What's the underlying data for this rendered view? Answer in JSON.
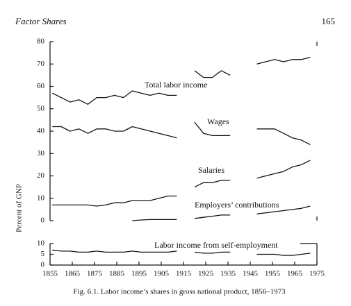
{
  "header": {
    "title": "Factor Shares",
    "page_number": "165"
  },
  "chart_data": {
    "type": "line",
    "caption": "Fig. 6.1. Labor income’s shares in gross national product, 1856–1973",
    "y_label": "Percent of GNP",
    "x": [
      1856,
      1860,
      1864,
      1868,
      1872,
      1876,
      1880,
      1884,
      1888,
      1892,
      1896,
      1900,
      1904,
      1908,
      1912,
      1916,
      1920,
      1924,
      1928,
      1932,
      1936,
      1940,
      1944,
      1948,
      1952,
      1956,
      1960,
      1964,
      1968,
      1972
    ],
    "xlim": [
      1855,
      1975
    ],
    "xticks": [
      1855,
      1865,
      1875,
      1885,
      1895,
      1905,
      1915,
      1925,
      1935,
      1945,
      1955,
      1965,
      1975
    ],
    "ylim": [
      0,
      80
    ],
    "yticks": [
      0,
      10,
      20,
      30,
      40,
      50,
      60,
      70,
      80
    ],
    "y2lim": [
      0,
      10
    ],
    "y2ticks": [
      0,
      5,
      10
    ],
    "series": [
      {
        "name": "Total labor income",
        "color": "#111111",
        "values": [
          57,
          55,
          53,
          54,
          52,
          55,
          55,
          56,
          55,
          58,
          57,
          56,
          57,
          56,
          56,
          null,
          67,
          64,
          64,
          67,
          65,
          null,
          null,
          70,
          71,
          72,
          71,
          72,
          72,
          73
        ]
      },
      {
        "name": "Wages",
        "color": "#111111",
        "values": [
          42,
          42,
          40,
          41,
          39,
          41,
          41,
          40,
          40,
          42,
          41,
          40,
          39,
          38,
          37,
          null,
          44,
          39,
          38,
          38,
          38,
          null,
          null,
          41,
          41,
          41,
          39,
          37,
          36,
          34
        ]
      },
      {
        "name": "Salaries",
        "color": "#111111",
        "values": [
          7,
          7,
          7,
          7,
          7,
          6.5,
          7,
          8,
          8,
          9,
          9,
          9,
          10,
          11,
          11,
          null,
          15,
          17,
          17,
          18,
          18,
          null,
          null,
          19,
          20,
          21,
          22,
          24,
          25,
          27
        ]
      },
      {
        "name": "Employers’ contributions",
        "color": "#111111",
        "values": [
          null,
          null,
          null,
          null,
          null,
          null,
          null,
          null,
          null,
          0,
          0.3,
          0.5,
          0.5,
          0.5,
          0.5,
          null,
          1,
          1.5,
          2,
          2.5,
          2.5,
          null,
          null,
          3,
          3.5,
          4,
          4.5,
          5,
          5.5,
          6.5
        ]
      },
      {
        "name": "Labor income from self-employment",
        "color": "#111111",
        "axis": "y2",
        "values": [
          7,
          6.5,
          6.5,
          6,
          6,
          6.5,
          6,
          6,
          6,
          6.5,
          6,
          6,
          6,
          6,
          6.5,
          null,
          6,
          5.5,
          5.5,
          6,
          6,
          null,
          null,
          5,
          5,
          5,
          4.5,
          4.5,
          5,
          5.5
        ]
      }
    ]
  }
}
